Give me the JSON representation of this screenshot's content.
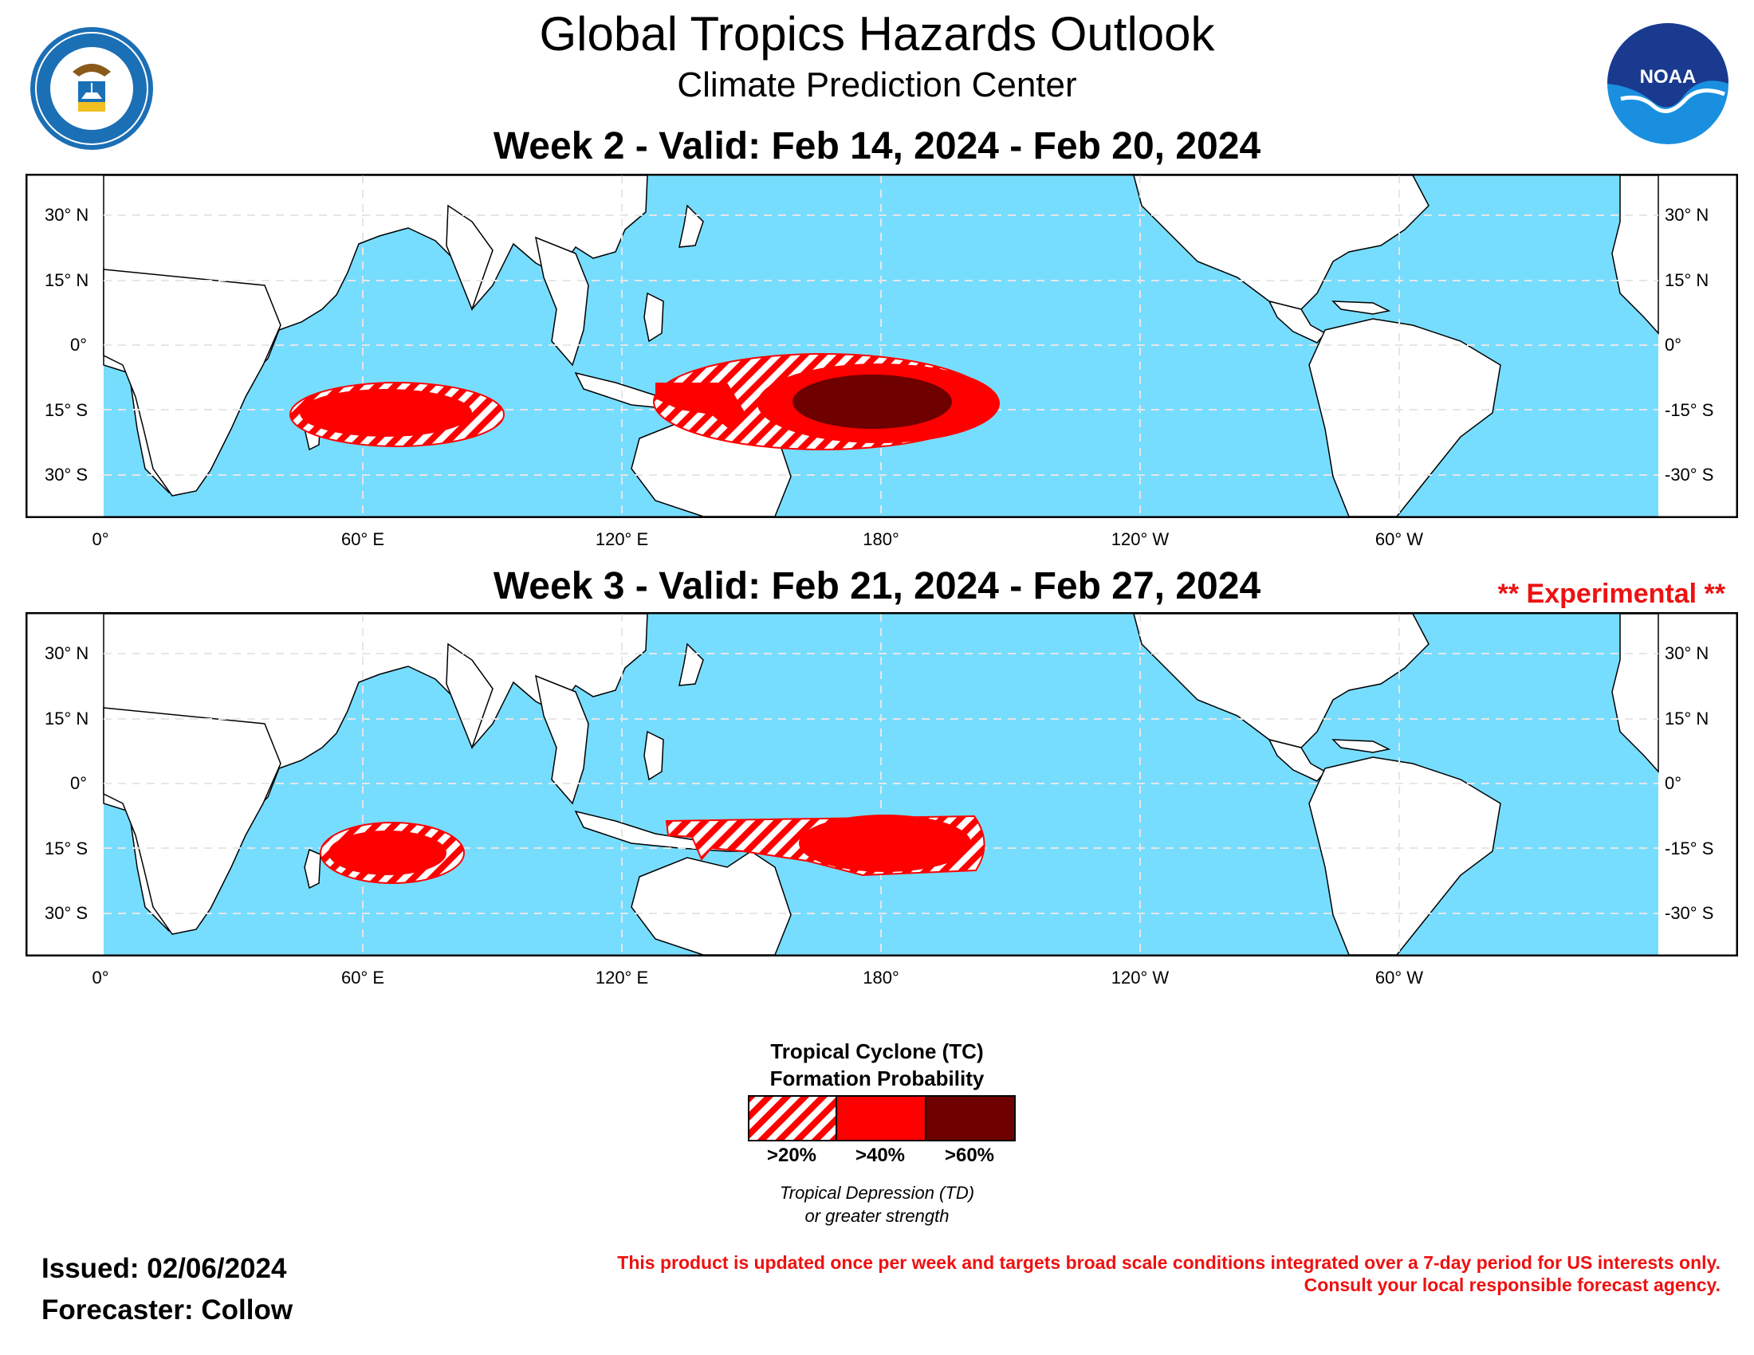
{
  "header": {
    "title": "Global Tropics Hazards Outlook",
    "subtitle": "Climate Prediction Center"
  },
  "logos": {
    "doc_seal": "department-of-commerce-seal",
    "noaa_logo": "noaa-logo",
    "noaa_text": "NOAA"
  },
  "week2": {
    "title": "Week 2 - Valid: Feb 14, 2024 - Feb 20, 2024"
  },
  "week3": {
    "title": "Week 3 - Valid: Feb 21, 2024 - Feb 27, 2024",
    "experimental": "** Experimental **"
  },
  "axes": {
    "lat_left": [
      "30° N",
      "15° N",
      "0°",
      "15° S",
      "30° S"
    ],
    "lat_right": [
      "30° N",
      "15° N",
      "0°",
      "-15° S",
      "-30° S"
    ],
    "lon": [
      "0°",
      "60° E",
      "120° E",
      "180°",
      "120° W",
      "60° W"
    ]
  },
  "legend": {
    "title_line1": "Tropical Cyclone (TC)",
    "title_line2": "Formation Probability",
    "labels": [
      ">20%",
      ">40%",
      ">60%"
    ],
    "colors": [
      "#ff0000",
      "#ff0000",
      "#6e0000"
    ],
    "note_line1": "Tropical Depression (TD)",
    "note_line2": "or greater strength"
  },
  "footer": {
    "issued": "Issued: 02/06/2024",
    "forecaster": "Forecaster: Collow",
    "disclaimer_line1": "This product is updated once per week and targets broad scale conditions integrated over a 7-day period for US interests only.",
    "disclaimer_line2": "Consult your local responsible forecast agency."
  },
  "colors": {
    "ocean": "#77ddff",
    "land": "#ffffff",
    "hazard_red": "#ff0000",
    "hazard_dark": "#6e0000",
    "accent_red": "#ee1111"
  }
}
